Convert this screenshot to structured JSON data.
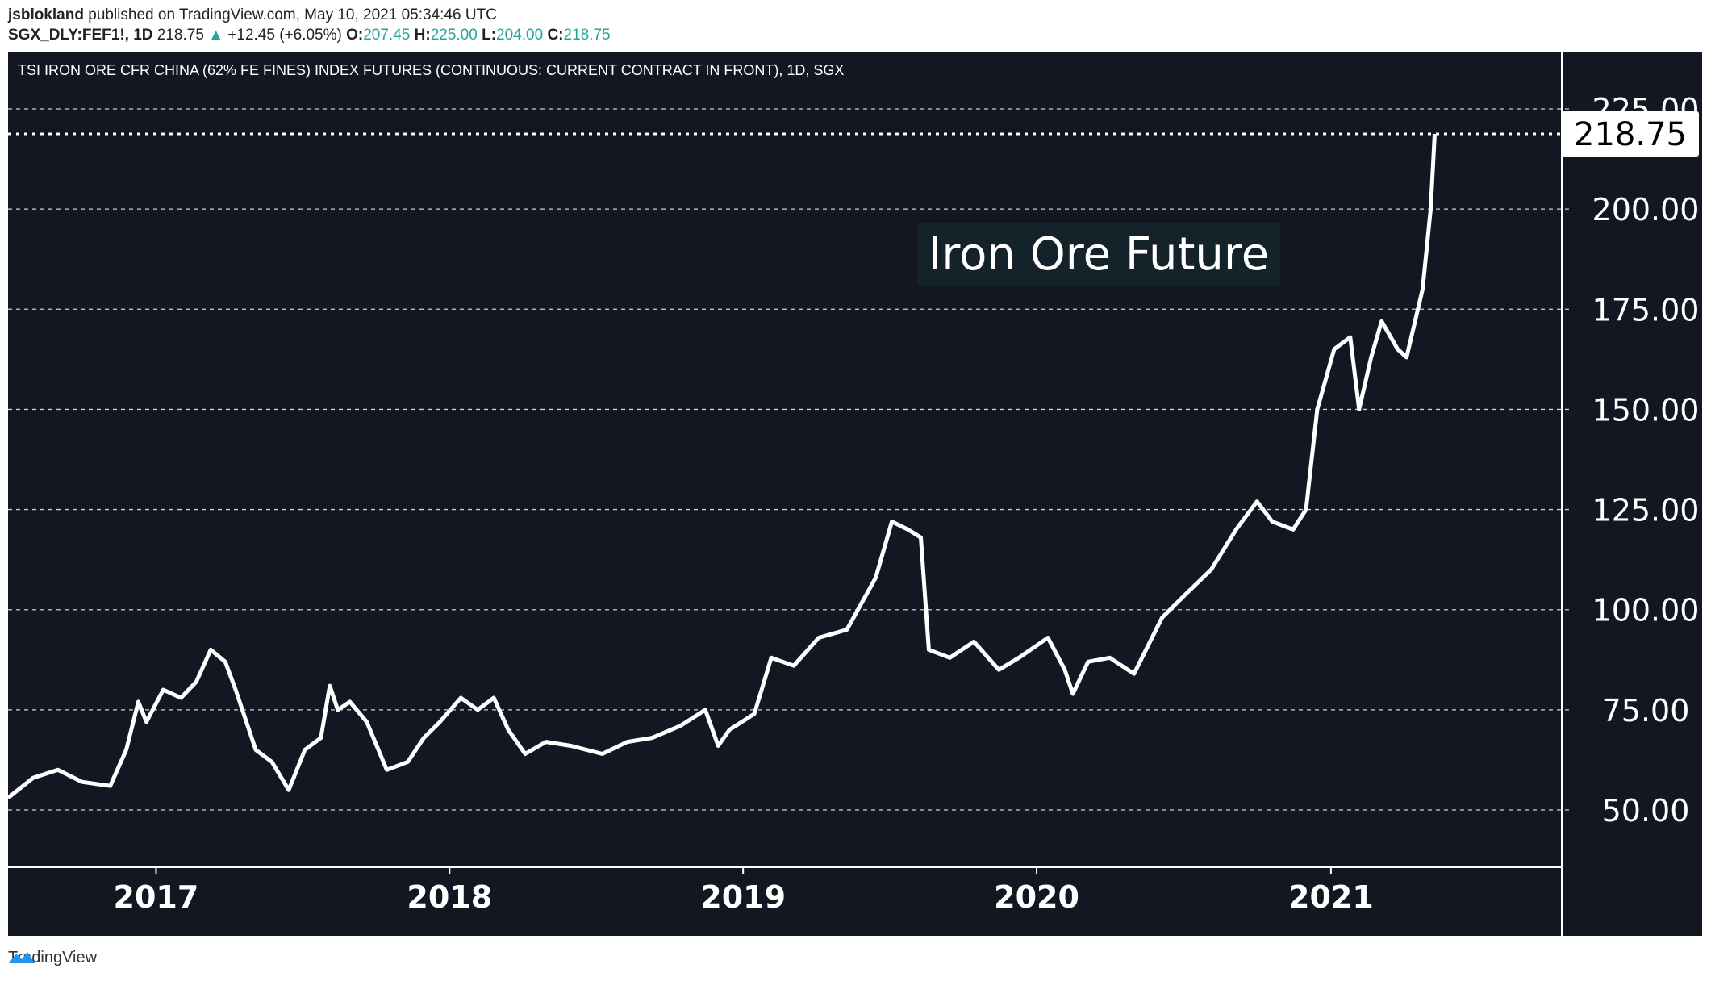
{
  "header": {
    "author": "jsblokland",
    "published": "published on TradingView.com, May 10, 2021 05:34:46 UTC",
    "symbol": "SGX_DLY:FEF1!, 1D",
    "last": "218.75",
    "change": "+12.45 (+6.05%)",
    "o_label": "O:",
    "o": "207.45",
    "h_label": "H:",
    "h": "225.00",
    "l_label": "L:",
    "l": "204.00",
    "c_label": "C:",
    "c": "218.75"
  },
  "footer": {
    "brand": "TradingView"
  },
  "colors": {
    "background": "#131722",
    "line": "#ffffff",
    "up": "#26a69a",
    "annotation_bg": "#132329"
  },
  "chart_data": {
    "type": "line",
    "title": "TSI IRON ORE CFR CHINA (62% FE FINES) INDEX FUTURES (CONTINUOUS: CURRENT CONTRACT IN FRONT), 1D, SGX",
    "annotation": "Iron Ore Future",
    "last_price_label": "218.75",
    "last_price": 218.75,
    "ylim": [
      36,
      233
    ],
    "xlim": [
      "2016-07-01",
      "2021-10-15"
    ],
    "grid": true,
    "y_ticks": [
      "50.00",
      "75.00",
      "100.00",
      "125.00",
      "150.00",
      "175.00",
      "200.00",
      "225.00"
    ],
    "x_ticks": [
      "2017",
      "2018",
      "2019",
      "2020",
      "2021"
    ],
    "x": [
      "2016-07-01",
      "2016-08-01",
      "2016-09-01",
      "2016-10-01",
      "2016-11-05",
      "2016-11-25",
      "2016-12-10",
      "2016-12-20",
      "2017-01-10",
      "2017-02-01",
      "2017-02-20",
      "2017-03-10",
      "2017-03-28",
      "2017-04-10",
      "2017-05-05",
      "2017-05-25",
      "2017-06-15",
      "2017-07-05",
      "2017-07-25",
      "2017-08-05",
      "2017-08-15",
      "2017-08-30",
      "2017-09-20",
      "2017-10-15",
      "2017-11-10",
      "2017-11-30",
      "2017-12-20",
      "2018-01-15",
      "2018-02-05",
      "2018-02-25",
      "2018-03-15",
      "2018-04-05",
      "2018-05-01",
      "2018-06-01",
      "2018-07-10",
      "2018-08-10",
      "2018-09-10",
      "2018-10-15",
      "2018-11-15",
      "2018-12-01",
      "2018-12-15",
      "2019-01-15",
      "2019-02-05",
      "2019-03-05",
      "2019-04-05",
      "2019-05-10",
      "2019-06-15",
      "2019-07-05",
      "2019-07-25",
      "2019-08-10",
      "2019-08-20",
      "2019-09-15",
      "2019-10-15",
      "2019-11-15",
      "2019-12-10",
      "2020-01-15",
      "2020-02-05",
      "2020-02-15",
      "2020-03-05",
      "2020-04-01",
      "2020-05-01",
      "2020-06-05",
      "2020-07-05",
      "2020-08-05",
      "2020-09-05",
      "2020-10-01",
      "2020-10-20",
      "2020-11-15",
      "2020-12-01",
      "2020-12-15",
      "2021-01-05",
      "2021-01-25",
      "2021-02-05",
      "2021-02-20",
      "2021-03-05",
      "2021-03-25",
      "2021-04-05",
      "2021-04-25",
      "2021-05-05",
      "2021-05-10"
    ],
    "values": [
      53,
      58,
      60,
      57,
      56,
      65,
      77,
      72,
      80,
      78,
      82,
      90,
      87,
      80,
      65,
      62,
      55,
      65,
      68,
      81,
      75,
      77,
      72,
      60,
      62,
      68,
      72,
      78,
      75,
      78,
      70,
      64,
      67,
      66,
      64,
      67,
      68,
      71,
      75,
      66,
      70,
      74,
      88,
      86,
      93,
      95,
      108,
      122,
      120,
      118,
      90,
      88,
      92,
      85,
      88,
      93,
      85,
      79,
      87,
      88,
      84,
      98,
      104,
      110,
      120,
      127,
      122,
      120,
      125,
      150,
      165,
      168,
      150,
      163,
      172,
      165,
      163,
      180,
      200,
      218.75
    ]
  }
}
